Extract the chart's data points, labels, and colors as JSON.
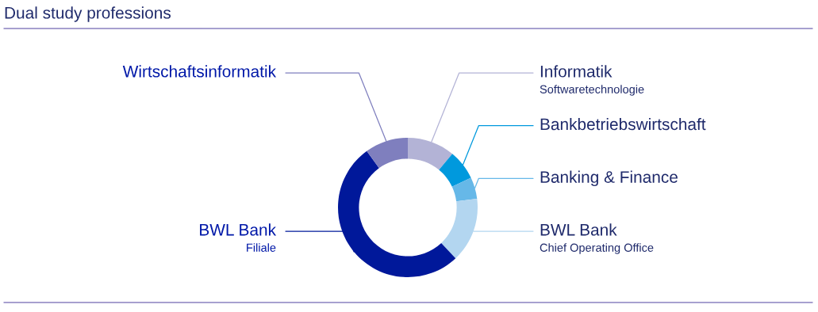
{
  "chart_data": {
    "type": "donut",
    "title": "Dual study professions",
    "categories": [
      "Informatik\nSoftwaretechnologie",
      "Bankbetriebswirtschaft",
      "Banking & Finance",
      "BWL Bank\nChief Operating Office",
      "BWL Bank\nFiliale",
      "Wirtschaftsinformatik"
    ],
    "values": [
      11,
      7,
      5,
      15,
      52,
      10
    ],
    "colors": [
      "#b3b3d6",
      "#0099dd",
      "#66b8e8",
      "#b3d6f0",
      "#00189a",
      "#7f7fbe"
    ],
    "legend": false
  }
}
